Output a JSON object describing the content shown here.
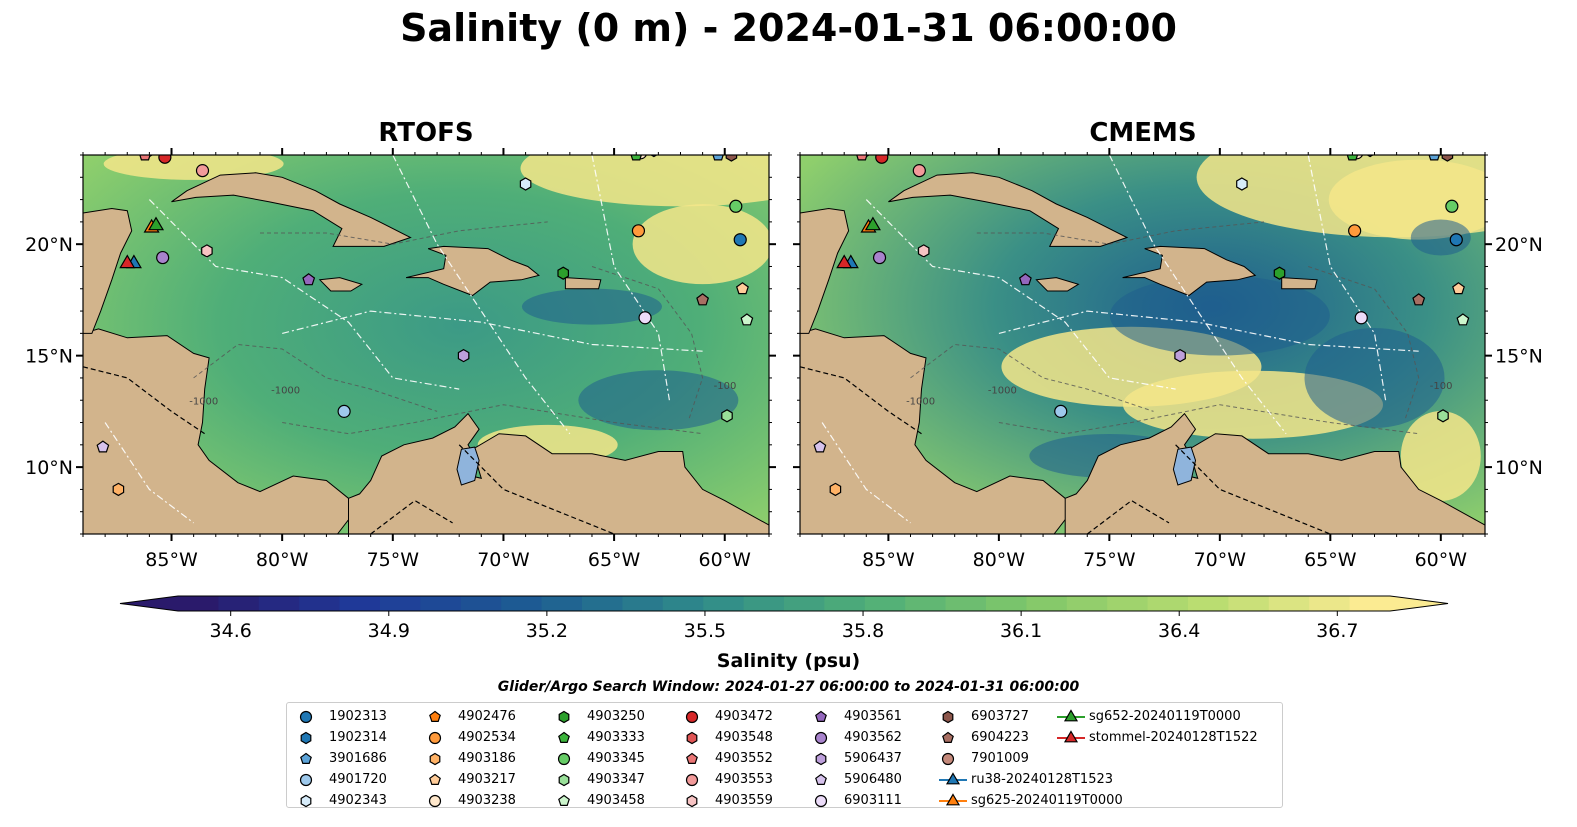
{
  "chart_data": {
    "type": "heatmap",
    "title": "Salinity (0 m) - 2024-01-31 06:00:00",
    "panels": [
      {
        "title": "RTOFS"
      },
      {
        "title": "CMEMS"
      }
    ],
    "lon_range": [
      -89,
      -58
    ],
    "lat_range": [
      7,
      24
    ],
    "lon_ticks": [
      -85,
      -80,
      -75,
      -70,
      -65,
      -60
    ],
    "lon_tick_labels": [
      "85°W",
      "80°W",
      "75°W",
      "70°W",
      "65°W",
      "60°W"
    ],
    "lat_ticks": [
      10,
      15,
      20
    ],
    "lat_tick_labels": [
      "10°N",
      "15°N",
      "20°N"
    ],
    "contour_labels": [
      "-100",
      "-1000"
    ],
    "colorbar": {
      "label": "Salinity (psu)",
      "min": 34.5,
      "max": 36.8,
      "extend": "both",
      "ticks": [
        34.6,
        34.9,
        35.2,
        35.5,
        35.8,
        36.1,
        36.4,
        36.7
      ],
      "tick_labels": [
        "34.6",
        "34.9",
        "35.2",
        "35.5",
        "35.8",
        "36.1",
        "36.4",
        "36.7"
      ],
      "stops": [
        "#2a1a6b",
        "#1f3a9a",
        "#1d5c92",
        "#2f8a8a",
        "#4fae78",
        "#82c86a",
        "#b8dc70",
        "#fbeb92"
      ]
    },
    "search_window": "Glider/Argo Search Window: 2024-01-27 06:00:00 to 2024-01-31 06:00:00",
    "legend": [
      {
        "label": "1902313",
        "marker": "circle",
        "color": "#1f77b4"
      },
      {
        "label": "1902314",
        "marker": "hexagon",
        "color": "#1f77b4"
      },
      {
        "label": "3901686",
        "marker": "pentagon",
        "color": "#5ca3d8"
      },
      {
        "label": "4901720",
        "marker": "circle",
        "color": "#9ec9ec"
      },
      {
        "label": "4902343",
        "marker": "hexagon",
        "color": "#d7ecfa"
      },
      {
        "label": "4902476",
        "marker": "pentagon",
        "color": "#ff7f0e"
      },
      {
        "label": "4902534",
        "marker": "circle",
        "color": "#ff9a3c"
      },
      {
        "label": "4903186",
        "marker": "hexagon",
        "color": "#ffb266"
      },
      {
        "label": "4903217",
        "marker": "pentagon",
        "color": "#ffcc99"
      },
      {
        "label": "4903238",
        "marker": "circle",
        "color": "#ffe8cc"
      },
      {
        "label": "4903250",
        "marker": "hexagon",
        "color": "#2ca02c"
      },
      {
        "label": "4903333",
        "marker": "pentagon",
        "color": "#3cb43c"
      },
      {
        "label": "4903345",
        "marker": "circle",
        "color": "#66cc66"
      },
      {
        "label": "4903347",
        "marker": "hexagon",
        "color": "#99e099"
      },
      {
        "label": "4903458",
        "marker": "pentagon",
        "color": "#ccf5cc"
      },
      {
        "label": "4903472",
        "marker": "circle",
        "color": "#d62728"
      },
      {
        "label": "4903548",
        "marker": "hexagon",
        "color": "#e05555"
      },
      {
        "label": "4903552",
        "marker": "pentagon",
        "color": "#ea7676"
      },
      {
        "label": "4903553",
        "marker": "circle",
        "color": "#f29a9a"
      },
      {
        "label": "4903559",
        "marker": "hexagon",
        "color": "#f7c3c3"
      },
      {
        "label": "4903561",
        "marker": "pentagon",
        "color": "#9467bd"
      },
      {
        "label": "4903562",
        "marker": "circle",
        "color": "#a883cc"
      },
      {
        "label": "5906437",
        "marker": "hexagon",
        "color": "#bd9fdb"
      },
      {
        "label": "5906480",
        "marker": "pentagon",
        "color": "#d6c2ec"
      },
      {
        "label": "6903111",
        "marker": "circle",
        "color": "#ecdcf9"
      },
      {
        "label": "6903727",
        "marker": "hexagon",
        "color": "#8c564b"
      },
      {
        "label": "6904223",
        "marker": "pentagon",
        "color": "#a86f63"
      },
      {
        "label": "7901009",
        "marker": "circle",
        "color": "#c4897b"
      },
      {
        "label": "ru38-20240128T1523",
        "marker": "triangle-line",
        "color": "#1f77b4"
      },
      {
        "label": "sg625-20240119T0000",
        "marker": "triangle-line",
        "color": "#ff7f0e"
      },
      {
        "label": "sg652-20240119T0000",
        "marker": "triangle-line",
        "color": "#2ca02c"
      },
      {
        "label": "stommel-20240128T1522",
        "marker": "triangle-line",
        "color": "#d62728"
      }
    ],
    "points": [
      {
        "id": "1902313",
        "lon": -59.3,
        "lat": 20.2
      },
      {
        "id": "1902314",
        "lon": -63.2,
        "lat": 24.2
      },
      {
        "id": "3901686",
        "lon": -60.3,
        "lat": 24.0
      },
      {
        "id": "4901720",
        "lon": -77.2,
        "lat": 12.5
      },
      {
        "id": "4902343",
        "lon": -69.0,
        "lat": 22.7
      },
      {
        "id": "4902476",
        "lon": -87.0,
        "lat": 24.3
      },
      {
        "id": "4902534",
        "lon": -63.9,
        "lat": 20.6
      },
      {
        "id": "4903186",
        "lon": -87.4,
        "lat": 9.0
      },
      {
        "id": "4903217",
        "lon": -59.2,
        "lat": 18.0
      },
      {
        "id": "4903238",
        "lon": -63.8,
        "lat": 24.1
      },
      {
        "id": "4903250",
        "lon": -67.3,
        "lat": 18.7
      },
      {
        "id": "4903333",
        "lon": -64.0,
        "lat": 24.0
      },
      {
        "id": "4903345",
        "lon": -59.5,
        "lat": 21.7
      },
      {
        "id": "4903347",
        "lon": -59.9,
        "lat": 12.3
      },
      {
        "id": "4903458",
        "lon": -59.0,
        "lat": 16.6
      },
      {
        "id": "4903472",
        "lon": -85.3,
        "lat": 23.9
      },
      {
        "id": "4903548",
        "lon": -86.0,
        "lat": 24.2
      },
      {
        "id": "4903552",
        "lon": -86.2,
        "lat": 24.0
      },
      {
        "id": "4903553",
        "lon": -83.6,
        "lat": 23.3
      },
      {
        "id": "4903559",
        "lon": -83.4,
        "lat": 19.7
      },
      {
        "id": "4903561",
        "lon": -78.8,
        "lat": 18.4
      },
      {
        "id": "4903562",
        "lon": -85.4,
        "lat": 19.4
      },
      {
        "id": "5906437",
        "lon": -71.8,
        "lat": 15.0
      },
      {
        "id": "5906480",
        "lon": -88.1,
        "lat": 10.9
      },
      {
        "id": "6903111",
        "lon": -63.6,
        "lat": 16.7
      },
      {
        "id": "6903727",
        "lon": -59.7,
        "lat": 24.0
      },
      {
        "id": "6904223",
        "lon": -61.0,
        "lat": 17.5
      },
      {
        "id": "7901009",
        "lon": -87.8,
        "lat": 24.4
      }
    ],
    "glider_tracks": [
      {
        "id": "ru38-20240128T1523",
        "lon": -86.7,
        "lat": 19.2
      },
      {
        "id": "sg625-20240119T0000",
        "lon": -85.9,
        "lat": 20.8
      },
      {
        "id": "sg652-20240119T0000",
        "lon": -85.7,
        "lat": 20.9
      },
      {
        "id": "stommel-20240128T1522",
        "lon": -87.0,
        "lat": 19.2
      }
    ]
  }
}
